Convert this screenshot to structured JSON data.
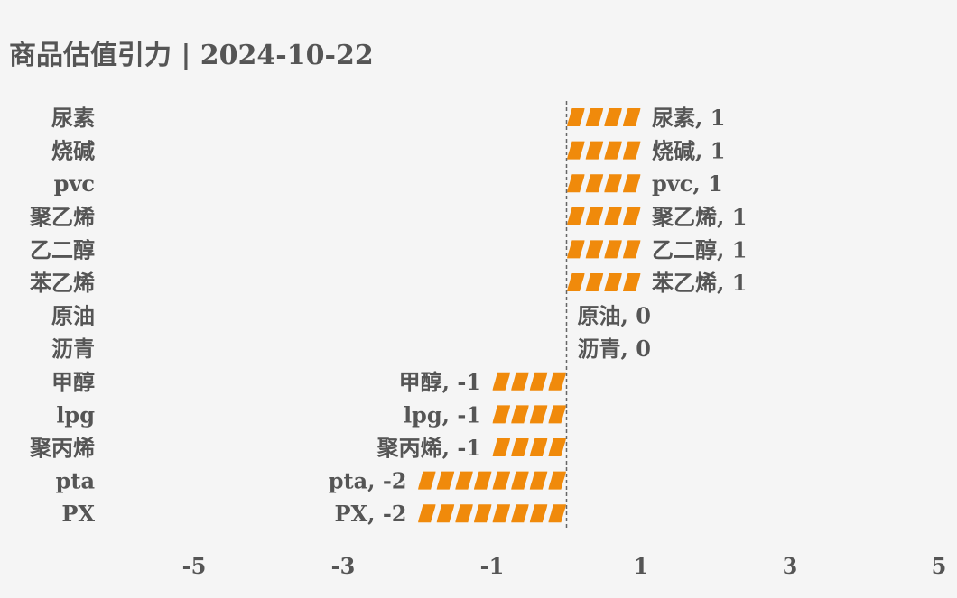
{
  "title": "商品估值引力 | 2024-10-22",
  "colors": {
    "bar": "#f08a0b",
    "text": "#555555",
    "background": "#f5f5f5",
    "zero_line": "#666666"
  },
  "chart_data": {
    "type": "bar",
    "orientation": "horizontal",
    "title": "商品估值引力 | 2024-10-22",
    "xlabel": "",
    "ylabel": "",
    "xlim": [
      -5,
      5
    ],
    "xticks": [
      -5,
      -3,
      -1,
      1,
      3,
      5
    ],
    "grid": false,
    "legend": "none",
    "categories": [
      "尿素",
      "烧碱",
      "pvc",
      "聚乙烯",
      "乙二醇",
      "苯乙烯",
      "原油",
      "沥青",
      "甲醇",
      "lpg",
      "聚丙烯",
      "pta",
      "PX"
    ],
    "values": [
      1,
      1,
      1,
      1,
      1,
      1,
      0,
      0,
      -1,
      -1,
      -1,
      -2,
      -2
    ],
    "data_labels": [
      "尿素, 1",
      "烧碱, 1",
      "pvc, 1",
      "聚乙烯, 1",
      "乙二醇, 1",
      "苯乙烯, 1",
      "原油, 0",
      "沥青, 0",
      "甲醇, -1",
      "lpg, -1",
      "聚丙烯, -1",
      "pta, -2",
      "PX, -2"
    ]
  }
}
